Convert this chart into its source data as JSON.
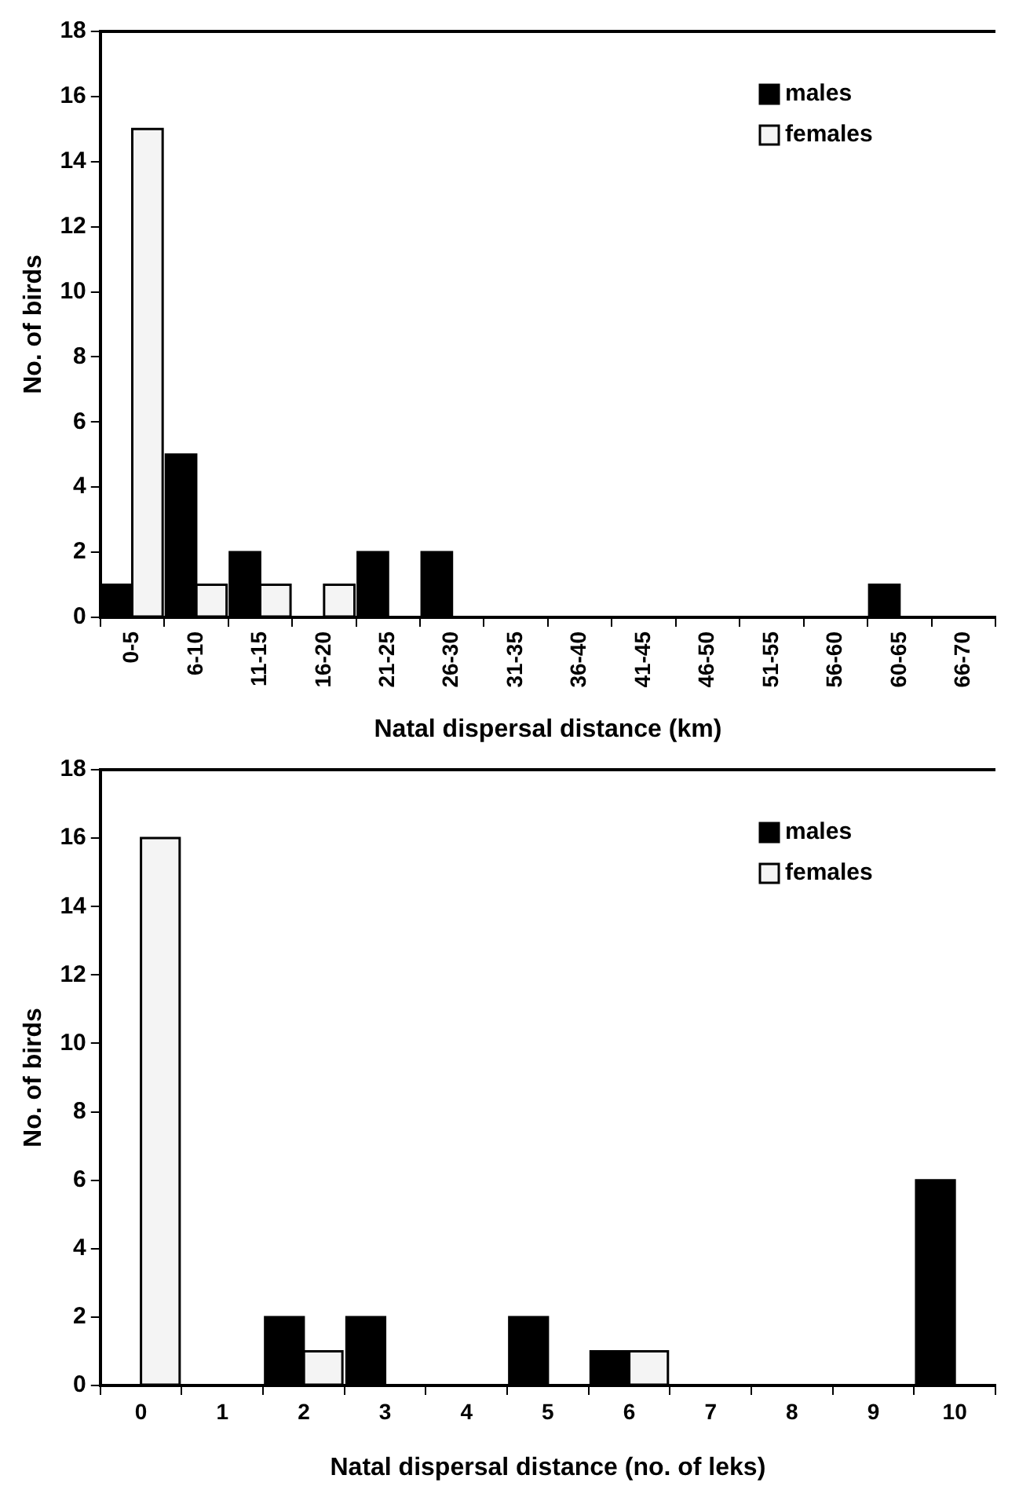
{
  "chart_data": [
    {
      "type": "bar",
      "xlabel": "Natal dispersal distance (km)",
      "ylabel": "No. of birds",
      "categories": [
        "0-5",
        "6-10",
        "11-15",
        "16-20",
        "21-25",
        "26-30",
        "31-35",
        "36-40",
        "41-45",
        "46-50",
        "51-55",
        "56-60",
        "60-65",
        "66-70"
      ],
      "series": [
        {
          "name": "males",
          "color": "#000000",
          "values": [
            1,
            5,
            2,
            0,
            2,
            2,
            0,
            0,
            0,
            0,
            0,
            0,
            1,
            0
          ]
        },
        {
          "name": "females",
          "color": "#f4f4f4",
          "values": [
            15,
            1,
            1,
            1,
            0,
            0,
            0,
            0,
            0,
            0,
            0,
            0,
            0,
            0
          ]
        }
      ],
      "ylim": [
        0,
        18
      ],
      "yticks": [
        0,
        2,
        4,
        6,
        8,
        10,
        12,
        14,
        16,
        18
      ],
      "grid": false,
      "legend": "top right"
    },
    {
      "type": "bar",
      "xlabel": "Natal dispersal distance (no. of leks)",
      "ylabel": "No. of birds",
      "categories": [
        "0",
        "1",
        "2",
        "3",
        "4",
        "5",
        "6",
        "7",
        "8",
        "9",
        "10"
      ],
      "series": [
        {
          "name": "males",
          "color": "#000000",
          "values": [
            0,
            0,
            2,
            2,
            0,
            2,
            1,
            0,
            0,
            0,
            6
          ]
        },
        {
          "name": "females",
          "color": "#f4f4f4",
          "values": [
            16,
            0,
            1,
            0,
            0,
            0,
            1,
            0,
            0,
            0,
            0
          ]
        }
      ],
      "ylim": [
        0,
        18
      ],
      "yticks": [
        0,
        2,
        4,
        6,
        8,
        10,
        12,
        14,
        16,
        18
      ],
      "grid": false,
      "legend": "top right"
    }
  ]
}
